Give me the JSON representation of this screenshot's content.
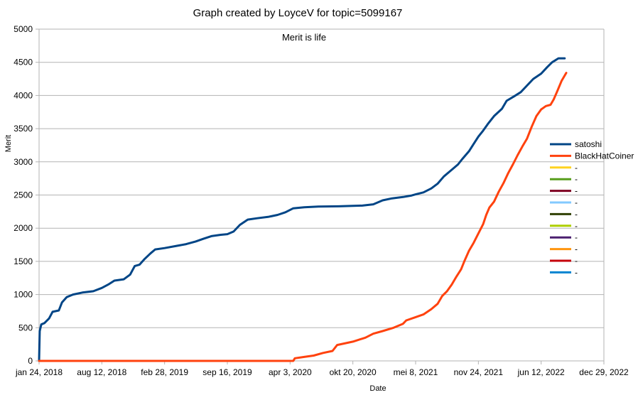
{
  "chart_data": {
    "type": "line",
    "title": "Graph created by LoyceV for topic=5099167",
    "subtitle": "Merit is life",
    "xlabel": "Date",
    "ylabel": "Merit",
    "ylim": [
      0,
      5000
    ],
    "yticks": [
      0,
      500,
      1000,
      1500,
      2000,
      2500,
      3000,
      3500,
      4000,
      4500,
      5000
    ],
    "xlim": [
      "2018-01-24",
      "2022-12-29"
    ],
    "xticks": [
      "2018-01-24",
      "2018-08-12",
      "2019-02-28",
      "2019-09-16",
      "2020-04-03",
      "2020-10-20",
      "2021-05-08",
      "2021-11-24",
      "2022-06-12",
      "2022-12-29"
    ],
    "xtick_labels": [
      "jan 24, 2018",
      "aug 12, 2018",
      "feb 28, 2019",
      "sep 16, 2019",
      "apr 3, 2020",
      "okt 20, 2020",
      "mei 8, 2021",
      "nov 24, 2021",
      "jun 12, 2022",
      "dec 29, 2022"
    ],
    "grid": true,
    "legend_position": "right",
    "series": [
      {
        "name": "satoshi",
        "color": "#004586",
        "points": [
          [
            "2018-01-24",
            0
          ],
          [
            "2018-01-26",
            450
          ],
          [
            "2018-01-31",
            550
          ],
          [
            "2018-02-10",
            570
          ],
          [
            "2018-02-25",
            640
          ],
          [
            "2018-03-08",
            740
          ],
          [
            "2018-03-28",
            760
          ],
          [
            "2018-04-07",
            880
          ],
          [
            "2018-04-22",
            960
          ],
          [
            "2018-05-12",
            1000
          ],
          [
            "2018-06-11",
            1030
          ],
          [
            "2018-07-16",
            1050
          ],
          [
            "2018-08-12",
            1100
          ],
          [
            "2018-09-01",
            1150
          ],
          [
            "2018-09-21",
            1210
          ],
          [
            "2018-10-21",
            1230
          ],
          [
            "2018-11-10",
            1300
          ],
          [
            "2018-11-25",
            1430
          ],
          [
            "2018-12-10",
            1450
          ],
          [
            "2018-12-25",
            1530
          ],
          [
            "2019-01-14",
            1620
          ],
          [
            "2019-01-29",
            1680
          ],
          [
            "2019-02-28",
            1700
          ],
          [
            "2019-04-04",
            1730
          ],
          [
            "2019-05-08",
            1760
          ],
          [
            "2019-06-07",
            1800
          ],
          [
            "2019-07-02",
            1840
          ],
          [
            "2019-07-27",
            1880
          ],
          [
            "2019-08-26",
            1900
          ],
          [
            "2019-09-16",
            1910
          ],
          [
            "2019-10-06",
            1950
          ],
          [
            "2019-10-26",
            2050
          ],
          [
            "2019-11-20",
            2130
          ],
          [
            "2019-12-20",
            2150
          ],
          [
            "2020-01-24",
            2170
          ],
          [
            "2020-02-23",
            2200
          ],
          [
            "2020-03-19",
            2240
          ],
          [
            "2020-04-13",
            2300
          ],
          [
            "2020-05-18",
            2315
          ],
          [
            "2020-07-02",
            2325
          ],
          [
            "2020-09-05",
            2330
          ],
          [
            "2020-11-19",
            2340
          ],
          [
            "2020-12-24",
            2360
          ],
          [
            "2021-01-23",
            2420
          ],
          [
            "2021-02-22",
            2450
          ],
          [
            "2021-03-29",
            2470
          ],
          [
            "2021-04-23",
            2490
          ],
          [
            "2021-05-08",
            2510
          ],
          [
            "2021-06-02",
            2540
          ],
          [
            "2021-06-27",
            2600
          ],
          [
            "2021-07-17",
            2670
          ],
          [
            "2021-08-06",
            2780
          ],
          [
            "2021-08-31",
            2880
          ],
          [
            "2021-09-20",
            2960
          ],
          [
            "2021-10-05",
            3050
          ],
          [
            "2021-10-25",
            3160
          ],
          [
            "2021-11-09",
            3270
          ],
          [
            "2021-11-24",
            3380
          ],
          [
            "2021-12-09",
            3470
          ],
          [
            "2021-12-24",
            3570
          ],
          [
            "2022-01-13",
            3690
          ],
          [
            "2022-02-07",
            3800
          ],
          [
            "2022-02-22",
            3920
          ],
          [
            "2022-03-19",
            3990
          ],
          [
            "2022-04-08",
            4050
          ],
          [
            "2022-04-28",
            4150
          ],
          [
            "2022-05-18",
            4250
          ],
          [
            "2022-06-12",
            4330
          ],
          [
            "2022-07-02",
            4430
          ],
          [
            "2022-07-17",
            4500
          ],
          [
            "2022-08-06",
            4560
          ],
          [
            "2022-08-26",
            4560
          ]
        ]
      },
      {
        "name": "BlackHatCoiner",
        "color": "#ff420e",
        "points": [
          [
            "2018-01-24",
            0
          ],
          [
            "2020-04-13",
            0
          ],
          [
            "2020-04-18",
            40
          ],
          [
            "2020-05-18",
            60
          ],
          [
            "2020-06-17",
            80
          ],
          [
            "2020-07-17",
            120
          ],
          [
            "2020-08-16",
            150
          ],
          [
            "2020-08-31",
            240
          ],
          [
            "2020-10-20",
            290
          ],
          [
            "2020-11-29",
            350
          ],
          [
            "2020-12-24",
            410
          ],
          [
            "2021-01-23",
            450
          ],
          [
            "2021-02-27",
            500
          ],
          [
            "2021-03-29",
            560
          ],
          [
            "2021-04-08",
            610
          ],
          [
            "2021-05-08",
            660
          ],
          [
            "2021-06-02",
            700
          ],
          [
            "2021-06-27",
            780
          ],
          [
            "2021-07-17",
            860
          ],
          [
            "2021-08-01",
            980
          ],
          [
            "2021-08-16",
            1050
          ],
          [
            "2021-08-31",
            1150
          ],
          [
            "2021-09-15",
            1270
          ],
          [
            "2021-09-30",
            1380
          ],
          [
            "2021-10-10",
            1500
          ],
          [
            "2021-10-25",
            1660
          ],
          [
            "2021-11-09",
            1780
          ],
          [
            "2021-11-24",
            1920
          ],
          [
            "2021-12-09",
            2060
          ],
          [
            "2021-12-19",
            2200
          ],
          [
            "2021-12-29",
            2310
          ],
          [
            "2022-01-13",
            2400
          ],
          [
            "2022-01-28",
            2550
          ],
          [
            "2022-02-12",
            2680
          ],
          [
            "2022-02-27",
            2830
          ],
          [
            "2022-03-14",
            2960
          ],
          [
            "2022-03-29",
            3100
          ],
          [
            "2022-04-13",
            3230
          ],
          [
            "2022-04-28",
            3350
          ],
          [
            "2022-05-13",
            3530
          ],
          [
            "2022-05-28",
            3690
          ],
          [
            "2022-06-12",
            3790
          ],
          [
            "2022-06-27",
            3840
          ],
          [
            "2022-07-12",
            3860
          ],
          [
            "2022-07-22",
            3940
          ],
          [
            "2022-08-01",
            4050
          ],
          [
            "2022-08-16",
            4220
          ],
          [
            "2022-08-31",
            4340
          ]
        ]
      },
      {
        "name": "-",
        "color": "#ffd320",
        "points": []
      },
      {
        "name": "-",
        "color": "#579d1c",
        "points": []
      },
      {
        "name": "-",
        "color": "#7e0021",
        "points": []
      },
      {
        "name": "-",
        "color": "#83caff",
        "points": []
      },
      {
        "name": "-",
        "color": "#314004",
        "points": []
      },
      {
        "name": "-",
        "color": "#aecf00",
        "points": []
      },
      {
        "name": "-",
        "color": "#4b1f6f",
        "points": []
      },
      {
        "name": "-",
        "color": "#ff950e",
        "points": []
      },
      {
        "name": "-",
        "color": "#c5000b",
        "points": []
      },
      {
        "name": "-",
        "color": "#0084d1",
        "points": []
      }
    ]
  }
}
